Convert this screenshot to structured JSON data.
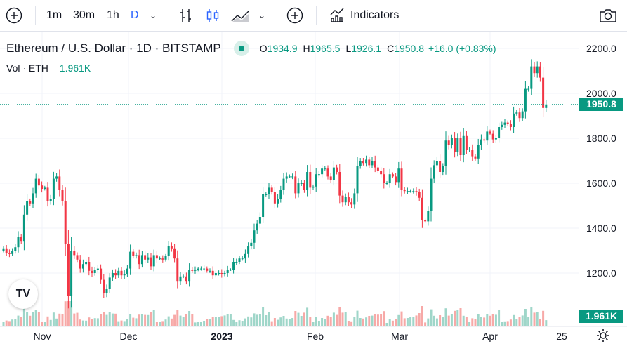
{
  "toolbar": {
    "intervals": [
      "1m",
      "30m",
      "1h",
      "D"
    ],
    "indicators_label": "Indicators"
  },
  "legend": {
    "symbol": "Ethereum / U.S. Dollar · 1D · BITSTAMP",
    "o_label": "O",
    "o": "1934.9",
    "h_label": "H",
    "h": "1965.5",
    "l_label": "L",
    "l": "1926.1",
    "c_label": "C",
    "c": "1950.8",
    "change": "+16.0 (+0.83%)",
    "vol_label": "Vol · ETH",
    "vol": "1.961K"
  },
  "colors": {
    "up": "#089981",
    "down": "#f23645",
    "up_vol": "#9fd6c9",
    "down_vol": "#f7a9a7"
  },
  "price_axis": {
    "ticks": [
      2200,
      2000,
      1800,
      1600,
      1400,
      1200
    ],
    "tick_labels": [
      "2200.0",
      "2000.0",
      "1800.0",
      "1600.0",
      "1400.0",
      "1200.0"
    ],
    "last_price": "1950.8",
    "last_volume": "1.961K"
  },
  "time_axis": {
    "labels": [
      "Nov",
      "Dec",
      "2023",
      "Feb",
      "Mar",
      "Apr",
      "25"
    ]
  },
  "chart_data": {
    "type": "candlestick",
    "start_value": 1300,
    "closes": [
      1310,
      1290,
      1285,
      1300,
      1315,
      1360,
      1340,
      1460,
      1520,
      1510,
      1555,
      1620,
      1590,
      1575,
      1580,
      1520,
      1530,
      1620,
      1630,
      1570,
      1520,
      1330,
      1100,
      1300,
      1280,
      1260,
      1220,
      1240,
      1250,
      1210,
      1200,
      1215,
      1220,
      1170,
      1110,
      1130,
      1180,
      1200,
      1190,
      1210,
      1190,
      1195,
      1220,
      1295,
      1275,
      1280,
      1240,
      1280,
      1260,
      1270,
      1230,
      1280,
      1265,
      1265,
      1260,
      1275,
      1320,
      1310,
      1265,
      1165,
      1185,
      1185,
      1165,
      1215,
      1210,
      1215,
      1220,
      1220,
      1220,
      1210,
      1210,
      1190,
      1200,
      1200,
      1195,
      1200,
      1215,
      1215,
      1250,
      1250,
      1265,
      1265,
      1285,
      1320,
      1335,
      1390,
      1420,
      1450,
      1550,
      1550,
      1580,
      1560,
      1510,
      1530,
      1570,
      1620,
      1630,
      1630,
      1630,
      1555,
      1600,
      1600,
      1570,
      1650,
      1580,
      1585,
      1640,
      1640,
      1665,
      1665,
      1630,
      1615,
      1670,
      1650,
      1545,
      1515,
      1540,
      1515,
      1505,
      1555,
      1675,
      1700,
      1690,
      1705,
      1680,
      1700,
      1670,
      1655,
      1640,
      1600,
      1600,
      1640,
      1630,
      1605,
      1665,
      1570,
      1565,
      1565,
      1565,
      1565,
      1560,
      1535,
      1435,
      1430,
      1475,
      1620,
      1680,
      1700,
      1650,
      1675,
      1790,
      1770,
      1800,
      1740,
      1800,
      1725,
      1810,
      1750,
      1750,
      1720,
      1710,
      1770,
      1795,
      1790,
      1830,
      1820,
      1795,
      1800,
      1850,
      1860,
      1870,
      1865,
      1850,
      1910,
      1915,
      1890,
      1920,
      2020,
      2020,
      2120,
      2090,
      2120,
      2070,
      1934.9,
      1950.8
    ]
  }
}
